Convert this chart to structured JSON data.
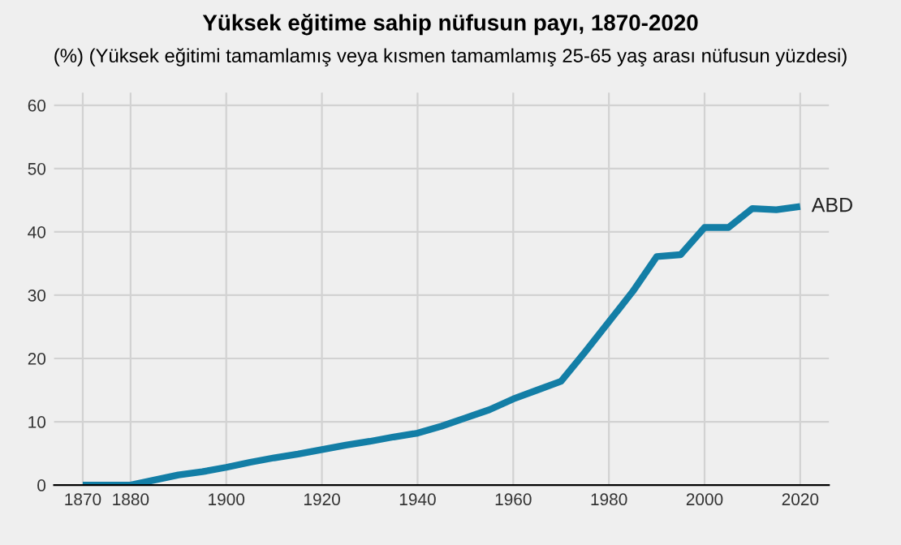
{
  "chart_data": {
    "type": "line",
    "title": "Yüksek eğitime sahip nüfusun payı, 1870-2020",
    "subtitle": "(%) (Yüksek eğitimi tamamlamış veya kısmen tamamlamış 25-65 yaş arası nüfusun yüzdesi)",
    "x": [
      1870,
      1875,
      1880,
      1885,
      1890,
      1895,
      1900,
      1905,
      1910,
      1915,
      1920,
      1925,
      1930,
      1935,
      1940,
      1945,
      1950,
      1955,
      1960,
      1965,
      1970,
      1975,
      1980,
      1985,
      1990,
      1995,
      2000,
      2005,
      2010,
      2015,
      2020
    ],
    "series": [
      {
        "name": "ABD",
        "color": "#137ea6",
        "values": [
          0,
          0,
          0,
          0.8,
          1.6,
          2.1,
          2.8,
          3.6,
          4.3,
          4.9,
          5.6,
          6.3,
          6.9,
          7.6,
          8.2,
          9.3,
          10.6,
          11.9,
          13.6,
          15.0,
          16.4,
          21.0,
          25.8,
          30.6,
          36.1,
          36.4,
          40.7,
          40.7,
          43.7,
          43.5,
          44.0
        ]
      }
    ],
    "xlim": [
      1864,
      2026
    ],
    "xticks": [
      1870,
      1880,
      1900,
      1920,
      1940,
      1960,
      1980,
      2000,
      2020
    ],
    "ylim": [
      0,
      62
    ],
    "yticks": [
      0,
      10,
      20,
      30,
      40,
      50,
      60
    ],
    "grid": true,
    "legend": false,
    "marker": "none",
    "line_style": "solid"
  }
}
